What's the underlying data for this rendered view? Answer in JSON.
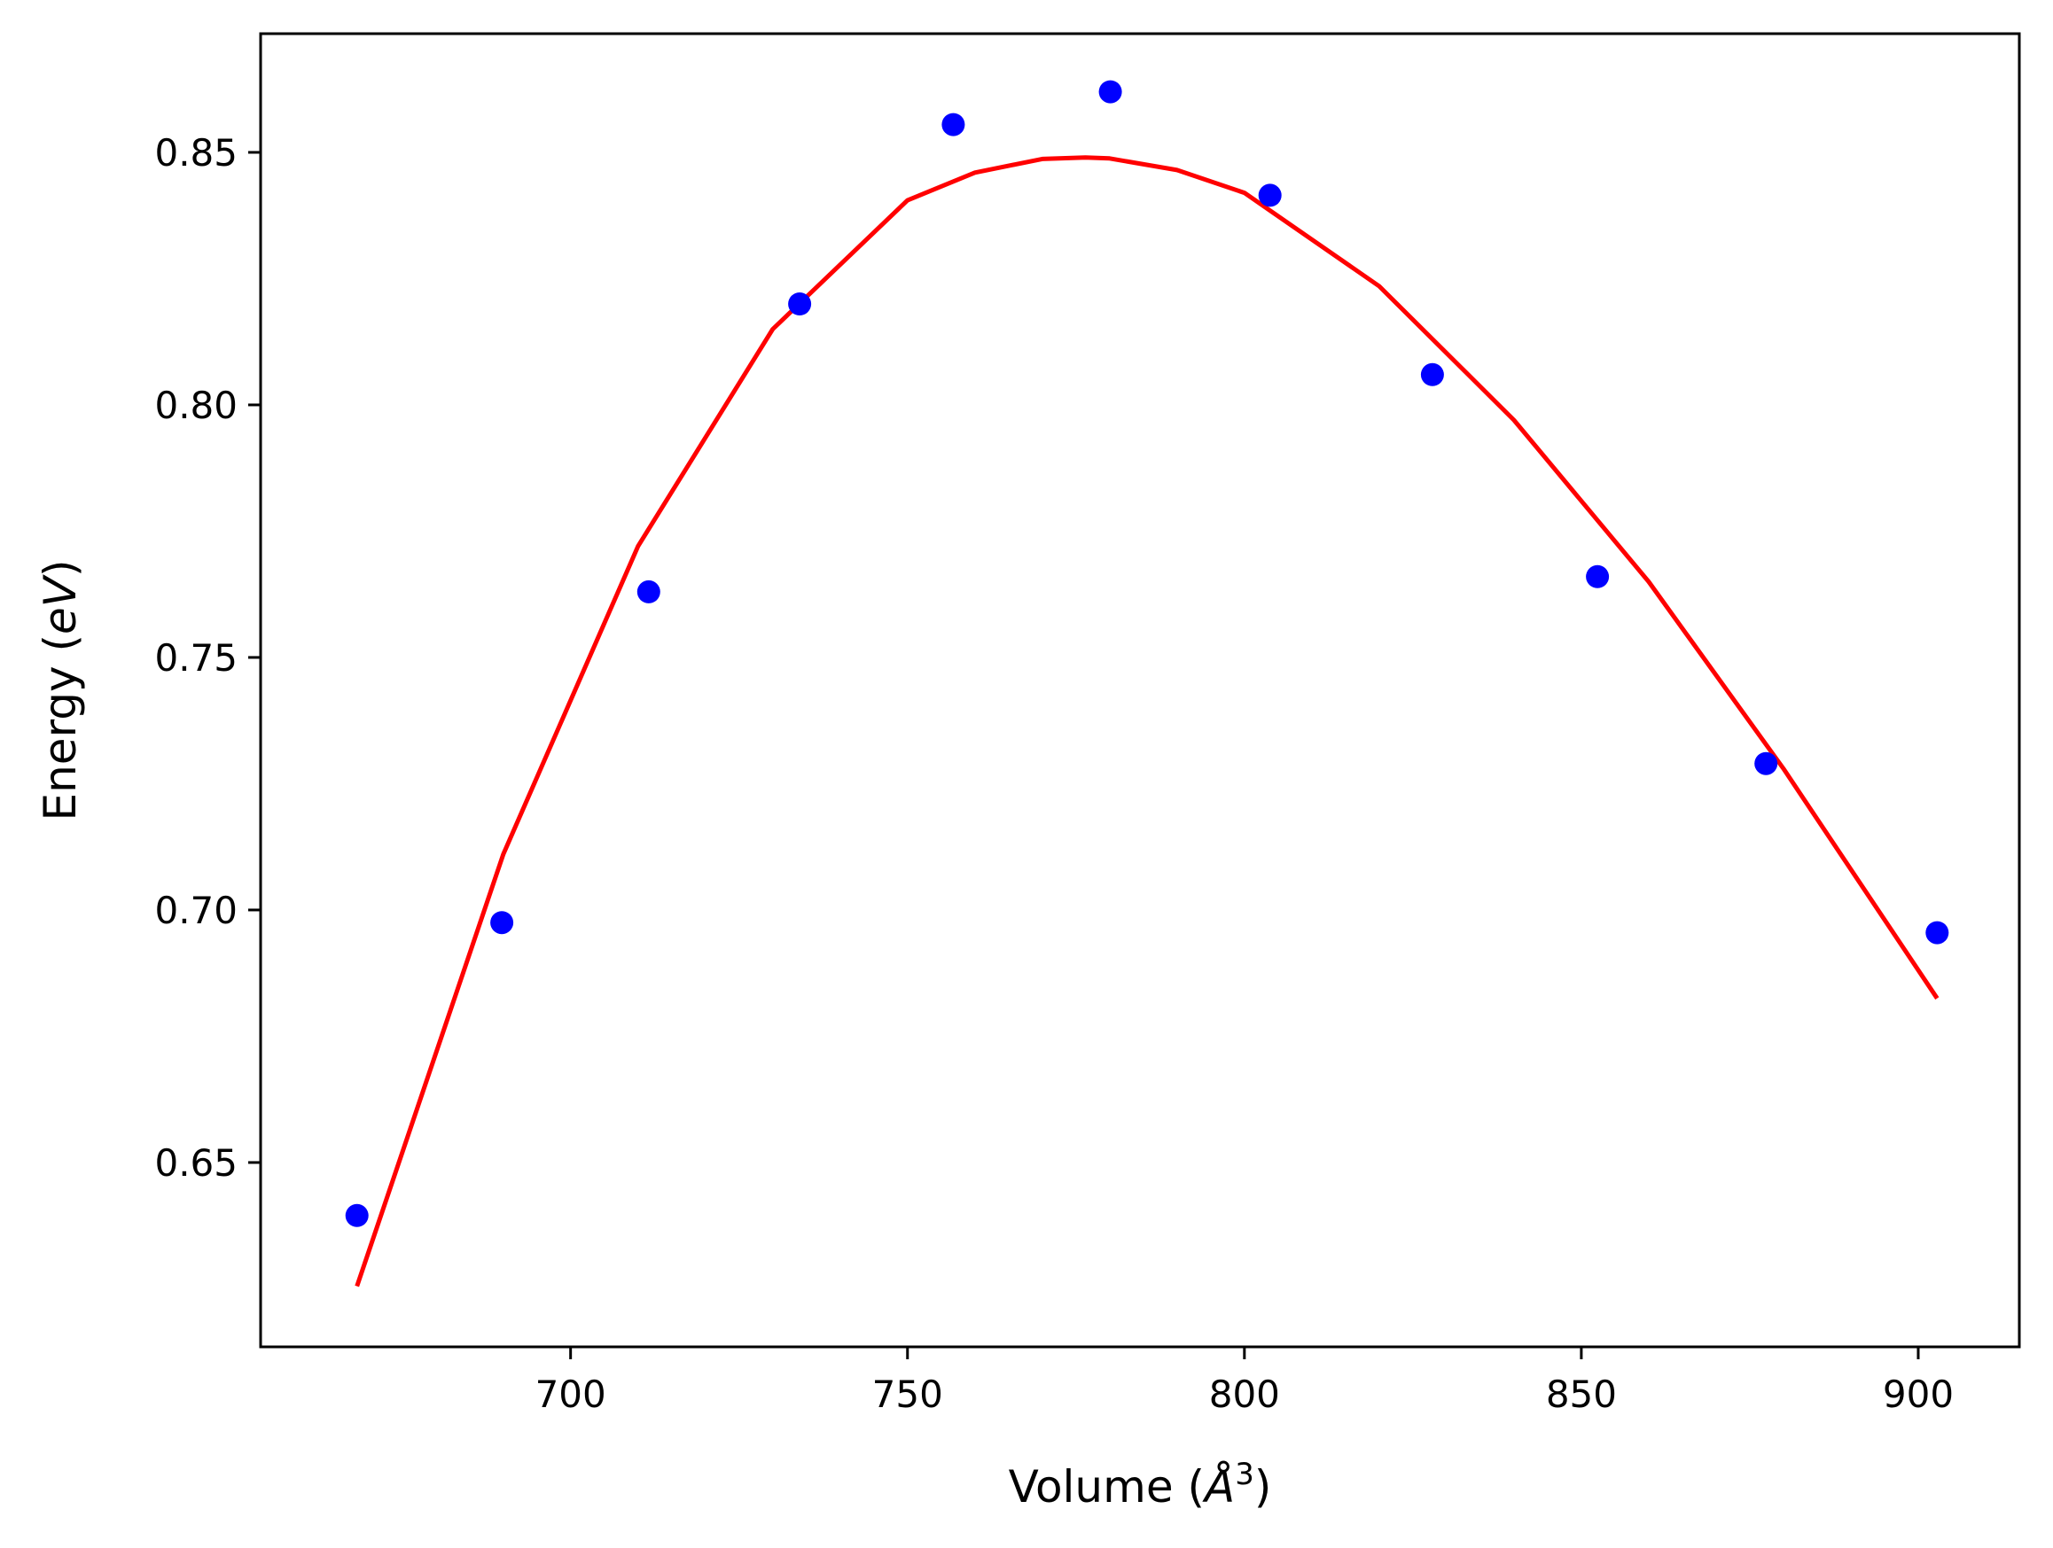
{
  "chart_data": {
    "type": "scatter",
    "xlabel": {
      "prefix": "Volume (",
      "symbol": "Å",
      "sup": "3",
      "suffix": ")"
    },
    "ylabel": {
      "prefix": "Energy (",
      "italic": "eV",
      "suffix": ")"
    },
    "xlim": [
      654,
      915
    ],
    "ylim": [
      0.6135,
      0.8735
    ],
    "xticks": [
      700,
      750,
      800,
      850,
      900
    ],
    "xtick_labels": [
      "700",
      "750",
      "800",
      "850",
      "900"
    ],
    "yticks": [
      0.65,
      0.7,
      0.75,
      0.8,
      0.85
    ],
    "ytick_labels": [
      "0.65",
      "0.70",
      "0.75",
      "0.80",
      "0.85"
    ],
    "grid": false,
    "series": [
      {
        "kind": "points",
        "color": "#0000ff",
        "x": [
          668.3,
          689.8,
          711.6,
          734.0,
          756.8,
          780.1,
          803.8,
          827.9,
          852.4,
          877.4,
          902.8
        ],
        "y": [
          0.6395,
          0.6975,
          0.763,
          0.82,
          0.8555,
          0.862,
          0.8415,
          0.806,
          0.766,
          0.729,
          0.6955
        ]
      },
      {
        "kind": "line",
        "color": "#ff0000",
        "x": [
          668.3,
          690,
          710,
          730,
          750,
          760,
          770,
          776.4,
          780,
          790,
          800,
          820,
          840,
          860,
          880,
          902.8
        ],
        "y": [
          0.6255,
          0.711,
          0.772,
          0.815,
          0.8405,
          0.846,
          0.8487,
          0.849,
          0.8488,
          0.8465,
          0.842,
          0.8235,
          0.797,
          0.765,
          0.728,
          0.6825
        ]
      }
    ]
  }
}
